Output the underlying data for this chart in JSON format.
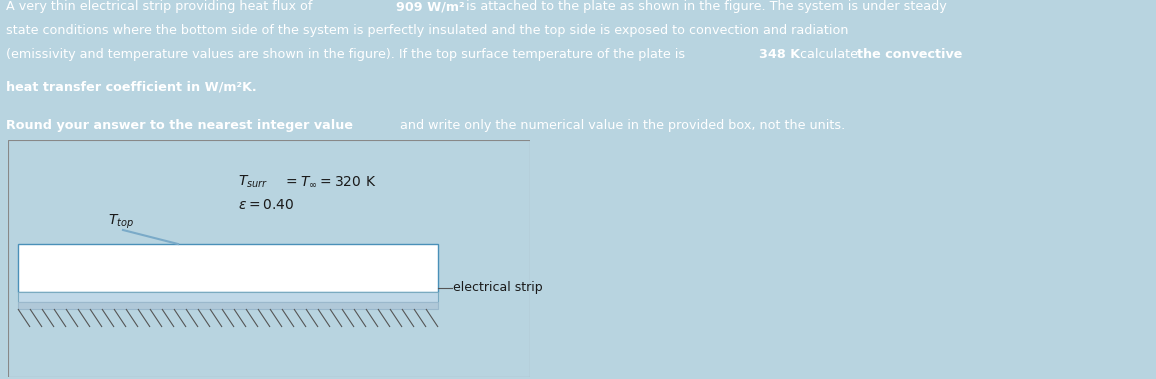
{
  "bg_color": "#b8d4e0",
  "top_text_bg": "#3b9fd4",
  "top_text_color": "#ffffff",
  "second_text_bg": "#3b9fd4",
  "second_text_color": "#ffffff",
  "diagram_bg": "#ffffff",
  "diagram_border": "#aaaaaa",
  "plate_color": "#ffffff",
  "plate_border": "#4a90b8",
  "strip_color_top": "#c8d8e4",
  "strip_color_bot": "#a8b8c4",
  "hatch_color": "#555555",
  "arrow_color": "#7aaccc",
  "text_dark": "#1a1a1a",
  "electrical_strip_label": "electrical strip",
  "epsilon_label": "ε = 0.40",
  "Tsurr_value": "= 320 K",
  "fig_width": 11.56,
  "fig_height": 3.79,
  "fontsize_main": 9.2,
  "fontsize_diag": 9.5
}
